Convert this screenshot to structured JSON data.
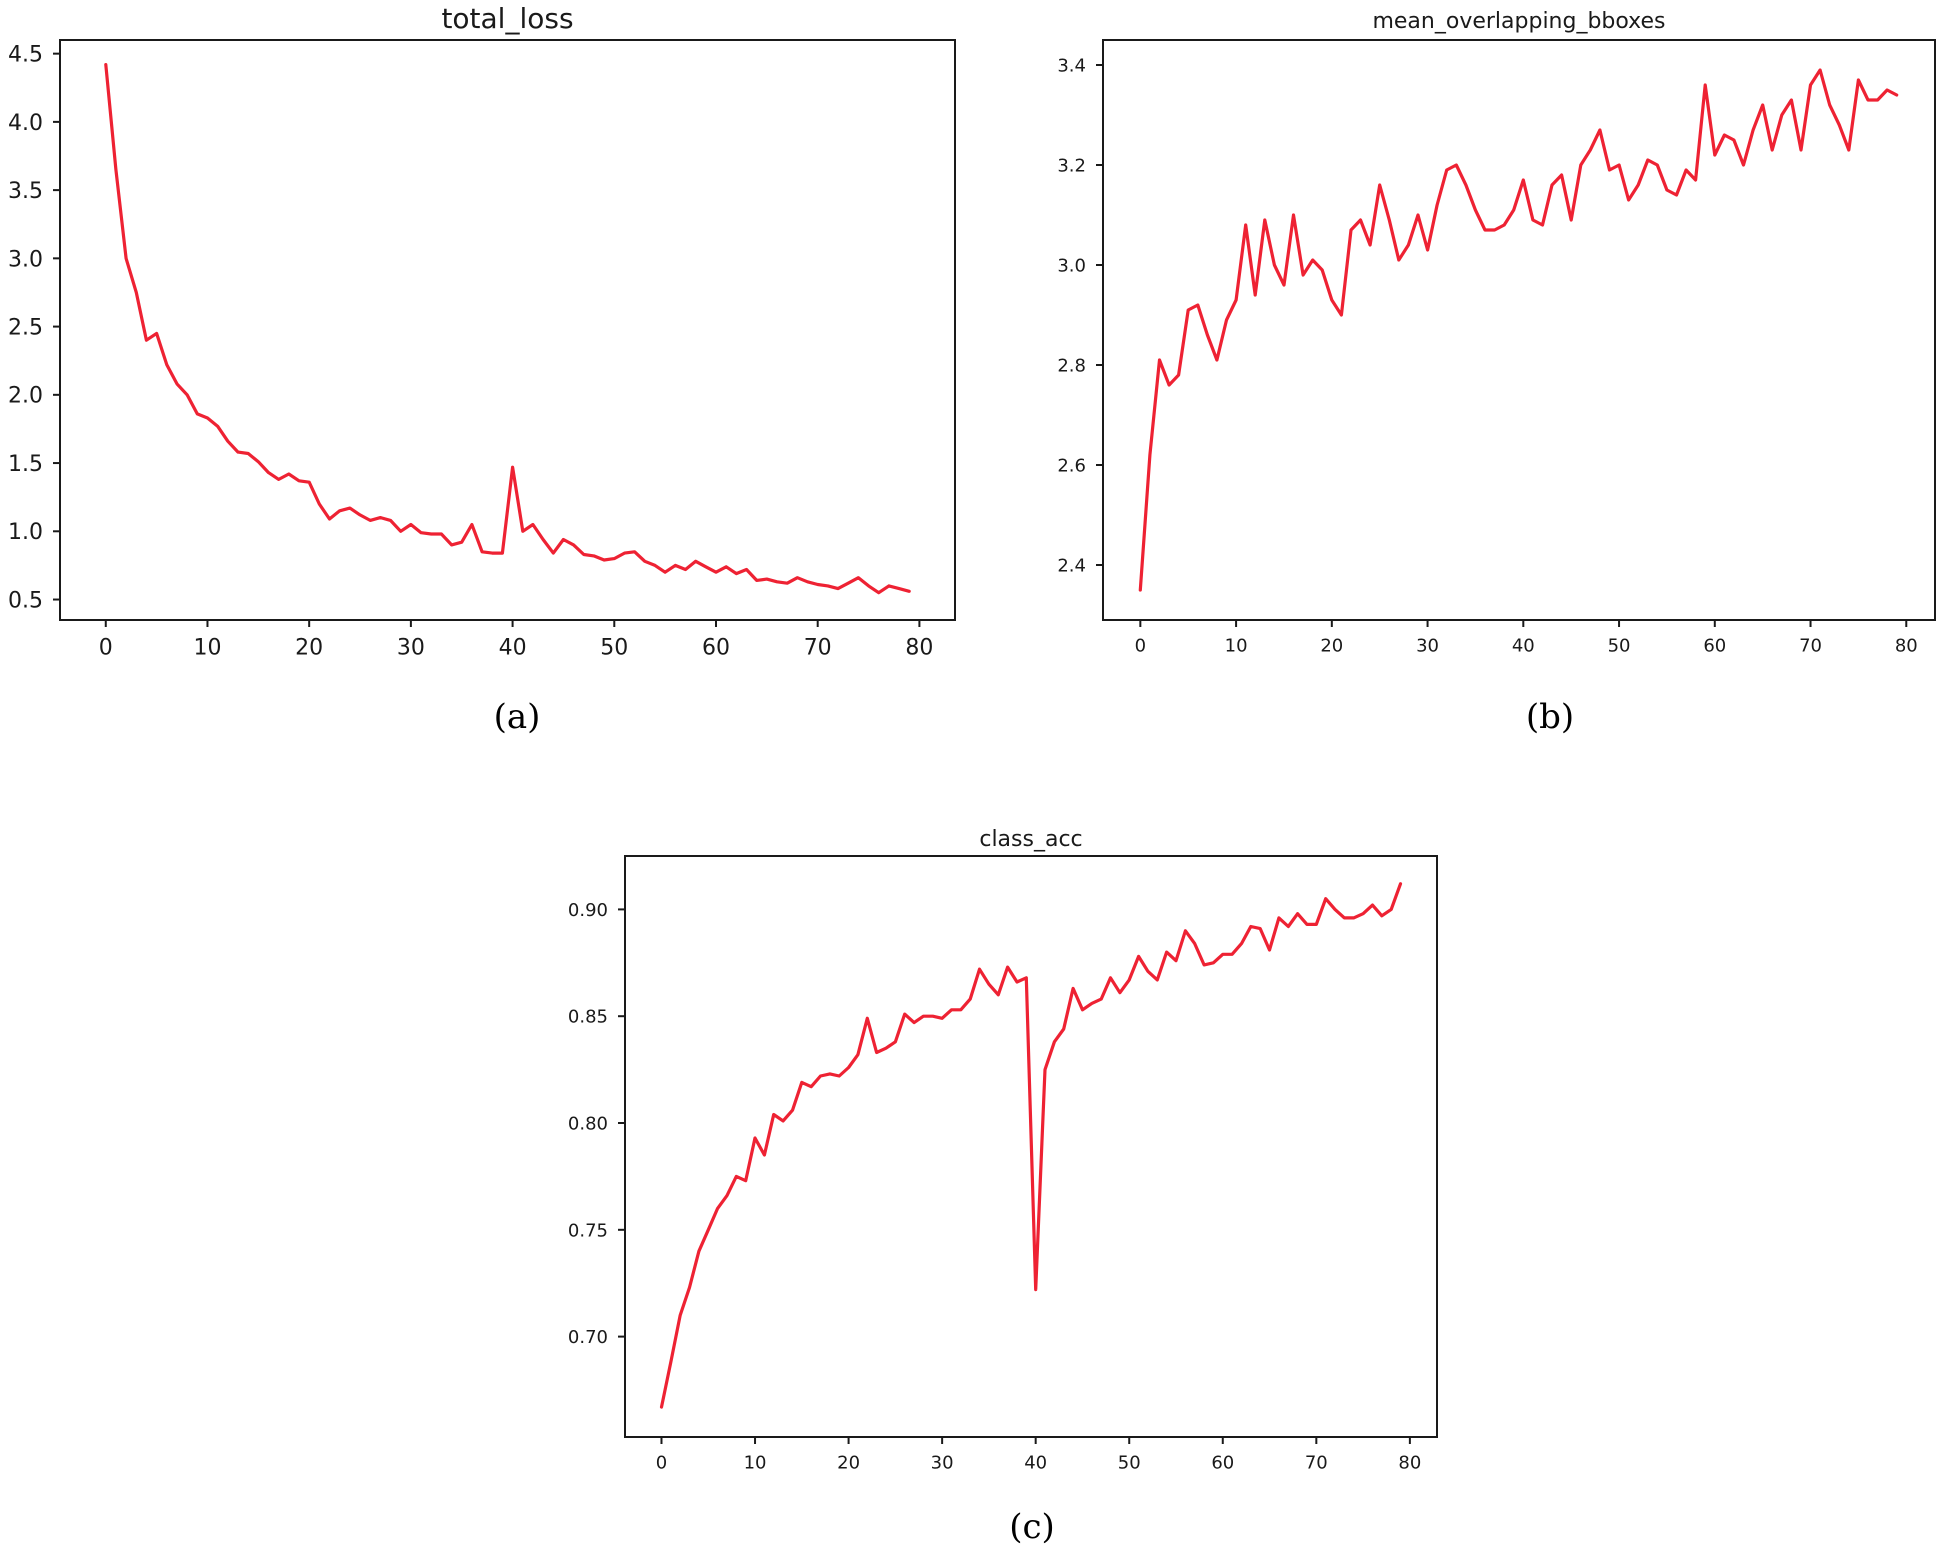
{
  "colors": {
    "line": "#ee2233",
    "axes": "#1a1a1a",
    "background": "#ffffff"
  },
  "chart_data": [
    {
      "type": "line",
      "title": "total_loss",
      "caption": "(a)",
      "xlim": [
        -4.5,
        83.5
      ],
      "ylim": [
        0.35,
        4.6
      ],
      "xticks": [
        0,
        10,
        20,
        30,
        40,
        50,
        60,
        70,
        80
      ],
      "xtick_labels": [
        "0",
        "10",
        "20",
        "30",
        "40",
        "50",
        "60",
        "70",
        "80"
      ],
      "yticks": [
        0.5,
        1.0,
        1.5,
        2.0,
        2.5,
        3.0,
        3.5,
        4.0,
        4.5
      ],
      "ytick_labels": [
        "0.5",
        "1.0",
        "1.5",
        "2.0",
        "2.5",
        "3.0",
        "3.5",
        "4.0",
        "4.5"
      ],
      "grid": false,
      "x": [
        0,
        1,
        2,
        3,
        4,
        5,
        6,
        7,
        8,
        9,
        10,
        11,
        12,
        13,
        14,
        15,
        16,
        17,
        18,
        19,
        20,
        21,
        22,
        23,
        24,
        25,
        26,
        27,
        28,
        29,
        30,
        31,
        32,
        33,
        34,
        35,
        36,
        37,
        38,
        39,
        40,
        41,
        42,
        43,
        44,
        45,
        46,
        47,
        48,
        49,
        50,
        51,
        52,
        53,
        54,
        55,
        56,
        57,
        58,
        59,
        60,
        61,
        62,
        63,
        64,
        65,
        66,
        67,
        68,
        69,
        70,
        71,
        72,
        73,
        74,
        75,
        76,
        77,
        78,
        79
      ],
      "series": [
        {
          "values": [
            4.42,
            3.65,
            3.0,
            2.75,
            2.4,
            2.45,
            2.22,
            2.08,
            2.0,
            1.86,
            1.83,
            1.77,
            1.66,
            1.58,
            1.57,
            1.51,
            1.43,
            1.38,
            1.42,
            1.37,
            1.36,
            1.2,
            1.09,
            1.15,
            1.17,
            1.12,
            1.08,
            1.1,
            1.08,
            1.0,
            1.05,
            0.99,
            0.98,
            0.98,
            0.9,
            0.92,
            1.05,
            0.85,
            0.84,
            0.84,
            1.47,
            1.0,
            1.05,
            0.94,
            0.84,
            0.94,
            0.9,
            0.83,
            0.82,
            0.79,
            0.8,
            0.84,
            0.85,
            0.78,
            0.75,
            0.7,
            0.75,
            0.72,
            0.78,
            0.74,
            0.7,
            0.74,
            0.69,
            0.72,
            0.64,
            0.65,
            0.63,
            0.62,
            0.66,
            0.63,
            0.61,
            0.6,
            0.58,
            0.62,
            0.66,
            0.6,
            0.55,
            0.6,
            0.58,
            0.56
          ]
        }
      ]
    },
    {
      "type": "line",
      "title": "mean_overlapping_bboxes",
      "caption": "(b)",
      "xlim": [
        -3.9,
        83.0
      ],
      "ylim": [
        2.29,
        3.45
      ],
      "xticks": [
        0,
        10,
        20,
        30,
        40,
        50,
        60,
        70,
        80
      ],
      "xtick_labels": [
        "0",
        "10",
        "20",
        "30",
        "40",
        "50",
        "60",
        "70",
        "80"
      ],
      "yticks": [
        2.4,
        2.6,
        2.8,
        3.0,
        3.2,
        3.4
      ],
      "ytick_labels": [
        "2.4",
        "2.6",
        "2.8",
        "3.0",
        "3.2",
        "3.4"
      ],
      "grid": false,
      "x": [
        0,
        1,
        2,
        3,
        4,
        5,
        6,
        7,
        8,
        9,
        10,
        11,
        12,
        13,
        14,
        15,
        16,
        17,
        18,
        19,
        20,
        21,
        22,
        23,
        24,
        25,
        26,
        27,
        28,
        29,
        30,
        31,
        32,
        33,
        34,
        35,
        36,
        37,
        38,
        39,
        40,
        41,
        42,
        43,
        44,
        45,
        46,
        47,
        48,
        49,
        50,
        51,
        52,
        53,
        54,
        55,
        56,
        57,
        58,
        59,
        60,
        61,
        62,
        63,
        64,
        65,
        66,
        67,
        68,
        69,
        70,
        71,
        72,
        73,
        74,
        75,
        76,
        77,
        78,
        79
      ],
      "series": [
        {
          "values": [
            2.35,
            2.62,
            2.81,
            2.76,
            2.78,
            2.91,
            2.92,
            2.86,
            2.81,
            2.89,
            2.93,
            3.08,
            2.94,
            3.09,
            3.0,
            2.96,
            3.1,
            2.98,
            3.01,
            2.99,
            2.93,
            2.9,
            3.07,
            3.09,
            3.04,
            3.16,
            3.09,
            3.01,
            3.04,
            3.1,
            3.03,
            3.12,
            3.19,
            3.2,
            3.16,
            3.11,
            3.07,
            3.07,
            3.08,
            3.11,
            3.17,
            3.09,
            3.08,
            3.16,
            3.18,
            3.09,
            3.2,
            3.23,
            3.27,
            3.19,
            3.2,
            3.13,
            3.16,
            3.21,
            3.2,
            3.15,
            3.14,
            3.19,
            3.17,
            3.36,
            3.22,
            3.26,
            3.25,
            3.2,
            3.27,
            3.32,
            3.23,
            3.3,
            3.33,
            3.23,
            3.36,
            3.39,
            3.32,
            3.28,
            3.23,
            3.37,
            3.33,
            3.33,
            3.35,
            3.34
          ]
        }
      ]
    },
    {
      "type": "line",
      "title": "class_acc",
      "caption": "(c)",
      "xlim": [
        -3.9,
        82.9
      ],
      "ylim": [
        0.653,
        0.925
      ],
      "xticks": [
        0,
        10,
        20,
        30,
        40,
        50,
        60,
        70,
        80
      ],
      "xtick_labels": [
        "0",
        "10",
        "20",
        "30",
        "40",
        "50",
        "60",
        "70",
        "80"
      ],
      "yticks": [
        0.7,
        0.75,
        0.8,
        0.85,
        0.9
      ],
      "ytick_labels": [
        "0.70",
        "0.75",
        "0.80",
        "0.85",
        "0.90"
      ],
      "grid": false,
      "x": [
        0,
        1,
        2,
        3,
        4,
        5,
        6,
        7,
        8,
        9,
        10,
        11,
        12,
        13,
        14,
        15,
        16,
        17,
        18,
        19,
        20,
        21,
        22,
        23,
        24,
        25,
        26,
        27,
        28,
        29,
        30,
        31,
        32,
        33,
        34,
        35,
        36,
        37,
        38,
        39,
        40,
        41,
        42,
        43,
        44,
        45,
        46,
        47,
        48,
        49,
        50,
        51,
        52,
        53,
        54,
        55,
        56,
        57,
        58,
        59,
        60,
        61,
        62,
        63,
        64,
        65,
        66,
        67,
        68,
        69,
        70,
        71,
        72,
        73,
        74,
        75,
        76,
        77,
        78,
        79
      ],
      "series": [
        {
          "values": [
            0.667,
            0.688,
            0.71,
            0.723,
            0.74,
            0.75,
            0.76,
            0.766,
            0.775,
            0.773,
            0.793,
            0.785,
            0.804,
            0.801,
            0.806,
            0.819,
            0.817,
            0.822,
            0.823,
            0.822,
            0.826,
            0.832,
            0.849,
            0.833,
            0.835,
            0.838,
            0.851,
            0.847,
            0.85,
            0.85,
            0.849,
            0.853,
            0.853,
            0.858,
            0.872,
            0.865,
            0.86,
            0.873,
            0.866,
            0.868,
            0.722,
            0.825,
            0.838,
            0.844,
            0.863,
            0.853,
            0.856,
            0.858,
            0.868,
            0.861,
            0.867,
            0.878,
            0.871,
            0.867,
            0.88,
            0.876,
            0.89,
            0.884,
            0.874,
            0.875,
            0.879,
            0.879,
            0.884,
            0.892,
            0.891,
            0.881,
            0.896,
            0.892,
            0.898,
            0.893,
            0.893,
            0.905,
            0.9,
            0.896,
            0.896,
            0.898,
            0.902,
            0.897,
            0.9,
            0.912
          ]
        }
      ]
    }
  ]
}
